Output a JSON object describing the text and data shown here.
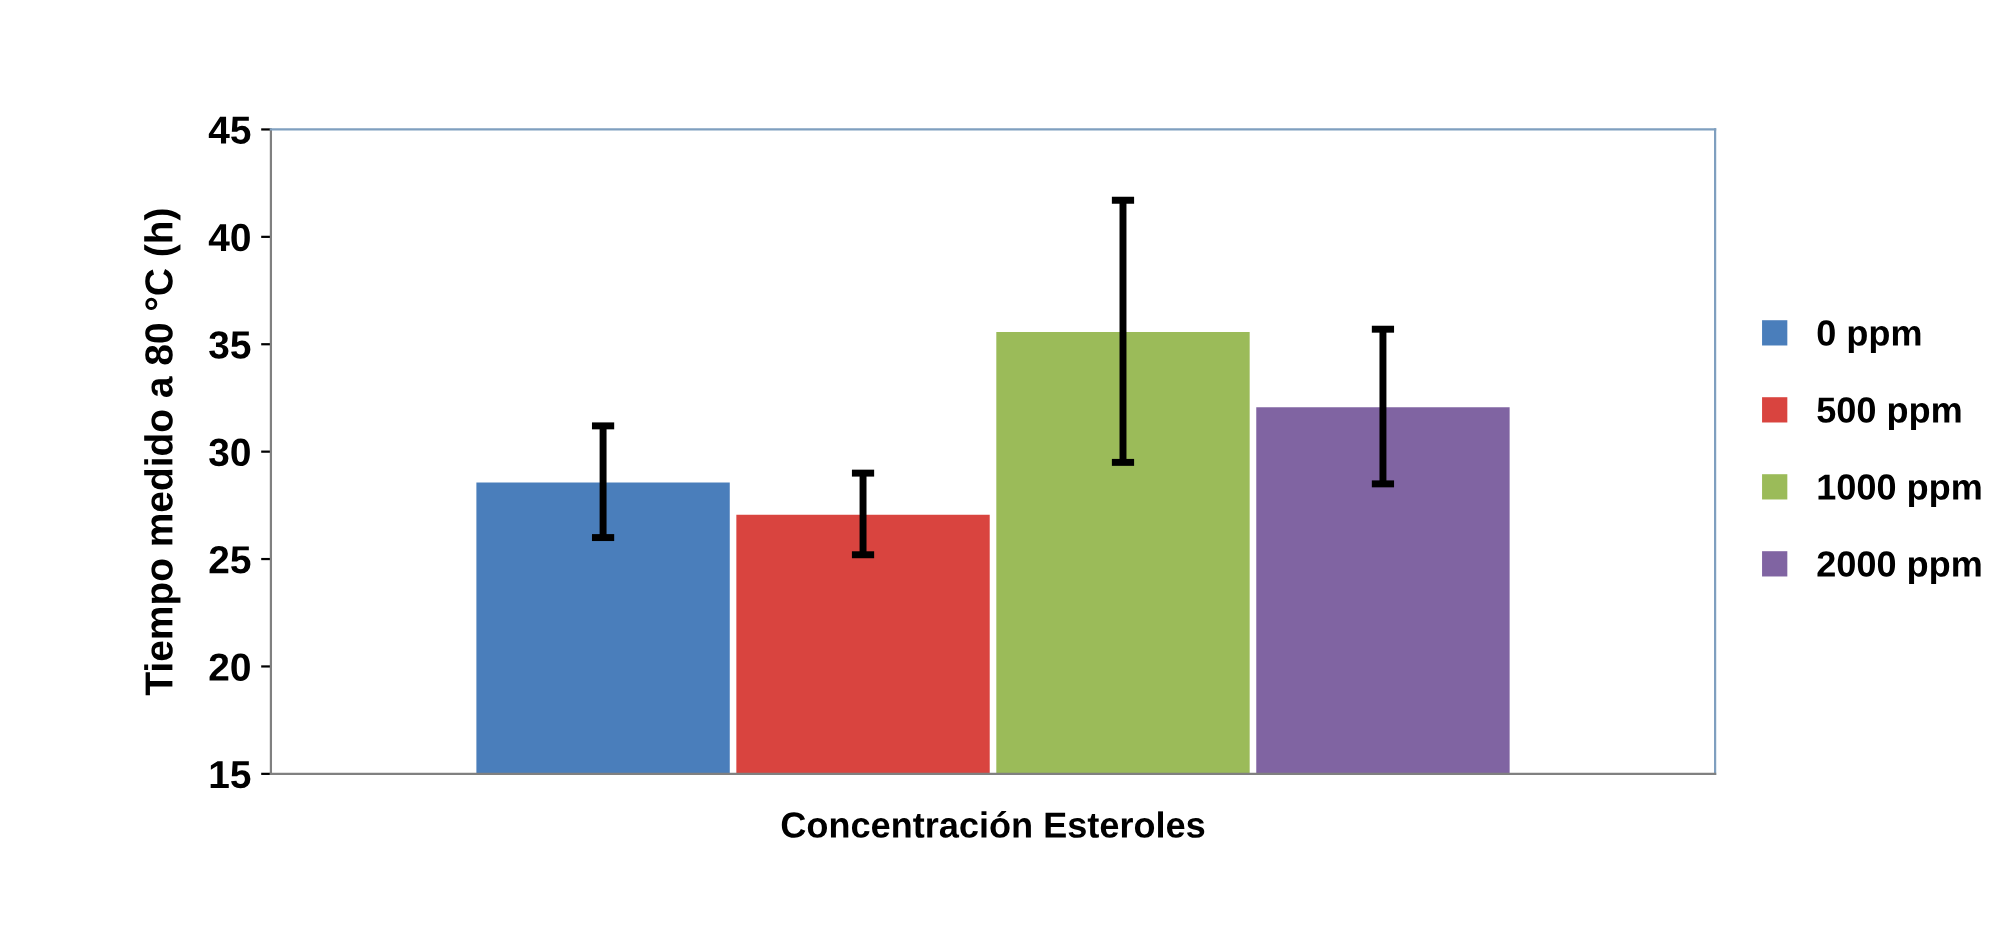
{
  "chart_data": {
    "type": "bar",
    "xlabel": "Concentración Esteroles",
    "ylabel": "Tiempo medido a 80 °C (h)",
    "categories": [
      null
    ],
    "series": [
      {
        "name": "0 ppm",
        "color": "#4a7ebb",
        "values": [
          28.6
        ],
        "errors": [
          2.6
        ]
      },
      {
        "name": "500 ppm",
        "color": "#d9443f",
        "values": [
          27.1
        ],
        "errors": [
          1.9
        ]
      },
      {
        "name": "1000 ppm",
        "color": "#9bbb59",
        "values": [
          35.6
        ],
        "errors": [
          6.1
        ]
      },
      {
        "name": "2000 ppm",
        "color": "#8064a2",
        "values": [
          32.1
        ],
        "errors": [
          3.6
        ]
      }
    ],
    "ylim": [
      15,
      45
    ],
    "yticks": [
      15,
      20,
      25,
      30,
      35,
      40,
      45
    ],
    "grid": false,
    "legend": "right"
  }
}
